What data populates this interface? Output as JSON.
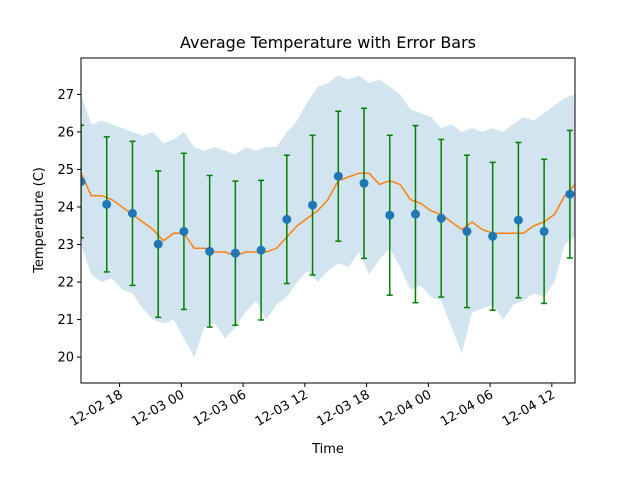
{
  "chart_data": {
    "type": "line",
    "title": "Average Temperature with Error Bars",
    "xlabel": "Time",
    "ylabel": "Temperature (C)",
    "xlim": [
      14.25,
      62.25
    ],
    "ylim": [
      19.31,
      27.97
    ],
    "xticks": [
      {
        "value": 18,
        "label": "12-02 18"
      },
      {
        "value": 24,
        "label": "12-03 00"
      },
      {
        "value": 30,
        "label": "12-03 06"
      },
      {
        "value": 36,
        "label": "12-03 12"
      },
      {
        "value": 42,
        "label": "12-03 18"
      },
      {
        "value": 48,
        "label": "12-04 00"
      },
      {
        "value": 54,
        "label": "12-04 06"
      },
      {
        "value": 60,
        "label": "12-04 12"
      }
    ],
    "yticks": [
      20,
      21,
      22,
      23,
      24,
      25,
      26,
      27
    ],
    "x": [
      14.25,
      15.25,
      16.25,
      17.25,
      18.25,
      19.25,
      20.25,
      21.25,
      22.25,
      23.25,
      24.25,
      25.25,
      26.25,
      27.25,
      28.25,
      29.25,
      30.25,
      31.25,
      32.25,
      33.25,
      34.25,
      35.25,
      36.25,
      37.25,
      38.25,
      39.25,
      40.25,
      41.25,
      42.25,
      43.25,
      44.25,
      45.25,
      46.25,
      47.25,
      48.25,
      49.25,
      50.25,
      51.25,
      52.25,
      53.25,
      54.25,
      55.25,
      56.25,
      57.25,
      58.25,
      59.25,
      60.25,
      61.25,
      62.25
    ],
    "line": {
      "color": "#ff7f0e",
      "values": [
        24.9,
        24.3,
        24.3,
        24.2,
        24.0,
        23.8,
        23.6,
        23.4,
        23.1,
        23.3,
        23.3,
        22.9,
        22.9,
        22.8,
        22.8,
        22.7,
        22.8,
        22.8,
        22.8,
        22.9,
        23.2,
        23.5,
        23.7,
        23.9,
        24.2,
        24.7,
        24.8,
        24.9,
        24.9,
        24.6,
        24.7,
        24.6,
        24.2,
        24.1,
        23.9,
        23.8,
        23.6,
        23.4,
        23.6,
        23.4,
        23.3,
        23.3,
        23.3,
        23.3,
        23.5,
        23.6,
        23.8,
        24.3,
        24.6
      ]
    },
    "band": {
      "color": "#1f77b4",
      "upper": [
        27.0,
        26.2,
        26.3,
        26.2,
        26.1,
        26.0,
        25.9,
        26.0,
        25.7,
        25.8,
        26.0,
        25.6,
        25.5,
        25.6,
        25.5,
        25.4,
        25.6,
        25.5,
        25.6,
        25.6,
        26.0,
        26.3,
        26.8,
        27.2,
        27.3,
        27.5,
        27.4,
        27.5,
        27.3,
        27.4,
        27.2,
        27.0,
        26.6,
        26.5,
        26.4,
        26.1,
        26.2,
        26.0,
        26.1,
        26.0,
        26.1,
        26.0,
        26.2,
        26.4,
        26.3,
        26.5,
        26.7,
        26.9,
        27.0
      ],
      "lower": [
        23.0,
        22.2,
        22.0,
        22.1,
        21.8,
        21.7,
        21.3,
        21.0,
        20.9,
        21.0,
        20.5,
        20.0,
        20.8,
        20.9,
        20.5,
        20.8,
        21.2,
        21.5,
        21.0,
        21.4,
        21.6,
        22.0,
        22.3,
        22.0,
        22.3,
        22.5,
        22.4,
        22.8,
        22.2,
        22.6,
        22.9,
        22.4,
        21.8,
        21.9,
        21.6,
        21.5,
        20.8,
        20.1,
        21.2,
        21.3,
        21.4,
        21.0,
        21.4,
        21.5,
        21.7,
        21.6,
        22.0,
        23.0,
        23.2
      ]
    },
    "errorbars": {
      "color": "#008000",
      "marker_color": "#1f77b4",
      "x": [
        14.25,
        16.75,
        19.25,
        21.75,
        24.25,
        26.75,
        29.25,
        31.75,
        34.25,
        36.75,
        39.25,
        41.75,
        44.25,
        46.75,
        49.25,
        51.75,
        54.25,
        56.75,
        59.25,
        61.75
      ],
      "values": [
        24.68,
        24.07,
        23.83,
        23.01,
        23.35,
        22.82,
        22.77,
        22.85,
        23.67,
        24.05,
        24.82,
        24.63,
        23.78,
        23.81,
        23.7,
        23.35,
        23.22,
        23.65,
        23.35,
        24.34
      ],
      "errors": [
        1.5,
        1.8,
        1.92,
        1.95,
        2.08,
        2.02,
        1.92,
        1.86,
        1.71,
        1.86,
        1.73,
        2.0,
        2.13,
        2.36,
        2.1,
        2.03,
        1.97,
        2.07,
        1.92,
        1.7
      ]
    }
  }
}
